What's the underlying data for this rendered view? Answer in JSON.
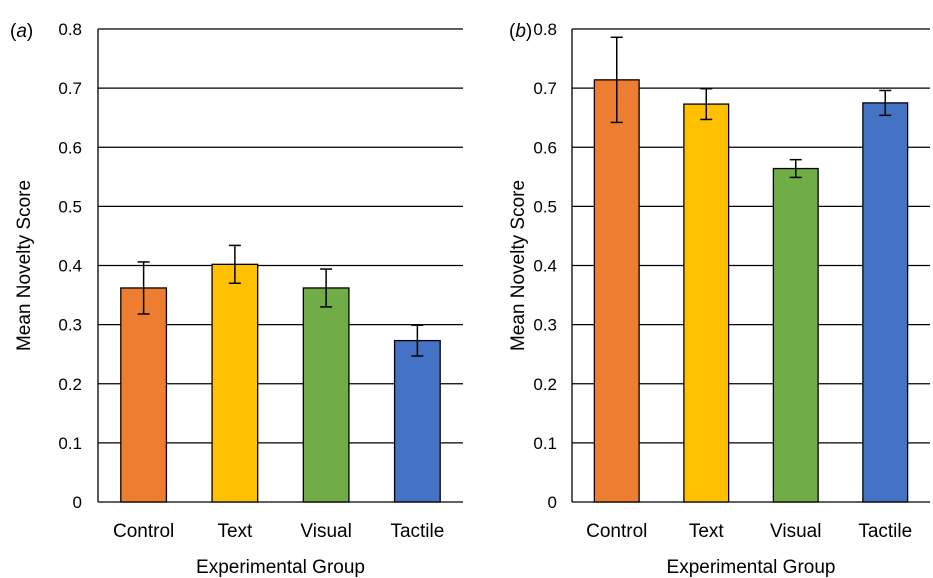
{
  "chart_data": [
    {
      "type": "bar",
      "panel_label": "a",
      "categories": [
        "Control",
        "Text",
        "Visual",
        "Tactile"
      ],
      "values": [
        0.362,
        0.402,
        0.362,
        0.273
      ],
      "error": [
        0.044,
        0.032,
        0.032,
        0.026
      ],
      "colors": [
        "#ED7D31",
        "#FFC000",
        "#70AD47",
        "#4472C4"
      ],
      "xlabel": "Experimental Group",
      "ylabel": "Mean Novelty Score",
      "ylim": [
        0,
        0.8
      ],
      "yticks": [
        "0",
        "0.1",
        "0.2",
        "0.3",
        "0.4",
        "0.5",
        "0.6",
        "0.7",
        "0.8"
      ],
      "grid": true
    },
    {
      "type": "bar",
      "panel_label": "b",
      "categories": [
        "Control",
        "Text",
        "Visual",
        "Tactile"
      ],
      "values": [
        0.714,
        0.673,
        0.564,
        0.675
      ],
      "error": [
        0.072,
        0.026,
        0.015,
        0.021
      ],
      "colors": [
        "#ED7D31",
        "#FFC000",
        "#70AD47",
        "#4472C4"
      ],
      "xlabel": "Experimental Group",
      "ylabel": "Mean Novelty Score",
      "ylim": [
        0,
        0.8
      ],
      "yticks": [
        "0",
        "0.1",
        "0.2",
        "0.3",
        "0.4",
        "0.5",
        "0.6",
        "0.7",
        "0.8"
      ],
      "grid": true
    }
  ]
}
